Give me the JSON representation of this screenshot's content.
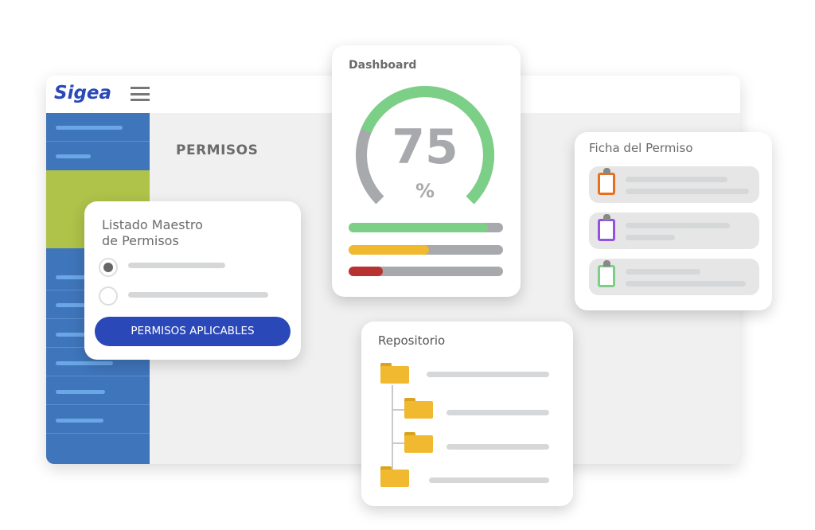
{
  "app": {
    "logo": "Sigea",
    "menu_icon": "hamburger-icon",
    "page_title": "PERMISOS"
  },
  "listado": {
    "title_line1": "Listado Maestro",
    "title_line2": "de Permisos",
    "options": [
      {
        "selected": true
      },
      {
        "selected": false
      }
    ],
    "button_label": "PERMISOS APLICABLES"
  },
  "dashboard": {
    "title": "Dashboard",
    "gauge_value": "75",
    "gauge_unit": "%",
    "gauge_percent": 75,
    "bars": [
      {
        "percent": 90,
        "color": "#7ccf87"
      },
      {
        "percent": 52,
        "color": "#f0b92f"
      },
      {
        "percent": 22,
        "color": "#b8322f"
      }
    ]
  },
  "ficha": {
    "title": "Ficha del Permiso",
    "items": [
      {
        "icon": "clipboard-icon",
        "color": "#e8701c"
      },
      {
        "icon": "clipboard-icon",
        "color": "#9152e0"
      },
      {
        "icon": "clipboard-icon",
        "color": "#7ccf87"
      }
    ]
  },
  "repositorio": {
    "title": "Repositorio",
    "folder_icon": "folder-icon"
  },
  "colors": {
    "sidebar": "#3f75bb",
    "sidebar_active": "#afc249",
    "primary_button": "#2b48b8",
    "gauge_green": "#7ccf87",
    "gauge_gray": "#a7a9ac",
    "folder": "#f0b92f"
  }
}
